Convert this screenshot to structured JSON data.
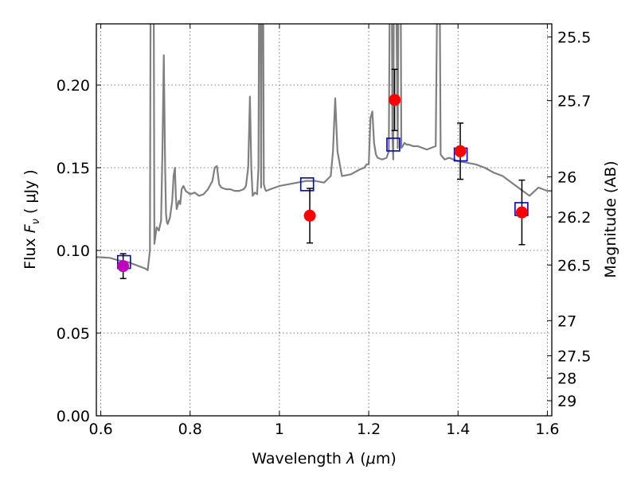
{
  "chart_data": {
    "type": "scatter",
    "xlabel_prefix": "Wavelength  ",
    "xlabel_symbol": "λ",
    "xlabel_units_open": " (",
    "xlabel_units_mu": "μ",
    "xlabel_units_close": "m)",
    "ylabel_prefix": "Flux  ",
    "ylabel_symbol": "F",
    "ylabel_sub": "ν",
    "ylabel_units": "  ( μJy )",
    "y2label": "Magnitude (AB)",
    "xlim": [
      0.59,
      1.61
    ],
    "ylim": [
      0.0,
      0.237
    ],
    "grid": true,
    "x_ticks": [
      {
        "value": 0.6,
        "label": "0.6"
      },
      {
        "value": 0.8,
        "label": "0.8"
      },
      {
        "value": 1.0,
        "label": "1"
      },
      {
        "value": 1.2,
        "label": "1.2"
      },
      {
        "value": 1.4,
        "label": "1.4"
      },
      {
        "value": 1.6,
        "label": "1.6"
      }
    ],
    "y_ticks": [
      {
        "value": 0.0,
        "label": "0.00"
      },
      {
        "value": 0.05,
        "label": "0.05"
      },
      {
        "value": 0.1,
        "label": "0.10"
      },
      {
        "value": 0.15,
        "label": "0.15"
      },
      {
        "value": 0.2,
        "label": "0.20"
      }
    ],
    "y2_ticks": [
      {
        "value": 25.5,
        "label": "25.5"
      },
      {
        "value": 25.7,
        "label": "25.7"
      },
      {
        "value": 26.0,
        "label": "26"
      },
      {
        "value": 26.2,
        "label": "26.2"
      },
      {
        "value": 26.5,
        "label": "26.5"
      },
      {
        "value": 27.0,
        "label": "27"
      },
      {
        "value": 27.5,
        "label": "27.5"
      },
      {
        "value": 28.0,
        "label": "28"
      },
      {
        "value": 29.0,
        "label": "29"
      }
    ],
    "colors": {
      "spectrum": "#808080",
      "observed": "#ff0000",
      "observed_first": "#bf00bf",
      "model": "#0000cc",
      "errorbar": "#000000",
      "grid": "#555555"
    },
    "spectrum": {
      "x": [
        0.59,
        0.62,
        0.64,
        0.66,
        0.68,
        0.7,
        0.705,
        0.71,
        0.712,
        0.715,
        0.718,
        0.72,
        0.725,
        0.73,
        0.735,
        0.738,
        0.741,
        0.744,
        0.746,
        0.748,
        0.75,
        0.755,
        0.76,
        0.763,
        0.766,
        0.768,
        0.77,
        0.775,
        0.778,
        0.781,
        0.785,
        0.79,
        0.8,
        0.81,
        0.82,
        0.83,
        0.84,
        0.85,
        0.855,
        0.86,
        0.865,
        0.87,
        0.88,
        0.89,
        0.9,
        0.91,
        0.92,
        0.925,
        0.93,
        0.934,
        0.937,
        0.94,
        0.945,
        0.95,
        0.953,
        0.955,
        0.957,
        0.959,
        0.961,
        0.963,
        0.965,
        0.968,
        0.97,
        0.98,
        1.0,
        1.02,
        1.04,
        1.06,
        1.08,
        1.1,
        1.115,
        1.12,
        1.125,
        1.13,
        1.14,
        1.16,
        1.18,
        1.19,
        1.195,
        1.2,
        1.204,
        1.208,
        1.212,
        1.216,
        1.22,
        1.23,
        1.24,
        1.245,
        1.248,
        1.251,
        1.253,
        1.255,
        1.257,
        1.26,
        1.265,
        1.267,
        1.269,
        1.271,
        1.273,
        1.276,
        1.28,
        1.285,
        1.29,
        1.3,
        1.31,
        1.32,
        1.33,
        1.34,
        1.35,
        1.355,
        1.358,
        1.361,
        1.364,
        1.367,
        1.37,
        1.38,
        1.4,
        1.42,
        1.44,
        1.46,
        1.48,
        1.5,
        1.52,
        1.54,
        1.56,
        1.58,
        1.59,
        1.6,
        1.61
      ],
      "y": [
        0.096,
        0.0955,
        0.094,
        0.093,
        0.091,
        0.089,
        0.088,
        0.1,
        0.3,
        0.3,
        0.3,
        0.104,
        0.114,
        0.112,
        0.118,
        0.16,
        0.218,
        0.15,
        0.122,
        0.117,
        0.116,
        0.12,
        0.13,
        0.145,
        0.15,
        0.133,
        0.125,
        0.13,
        0.128,
        0.137,
        0.139,
        0.136,
        0.134,
        0.135,
        0.133,
        0.134,
        0.137,
        0.142,
        0.15,
        0.151,
        0.14,
        0.138,
        0.137,
        0.137,
        0.136,
        0.136,
        0.137,
        0.139,
        0.15,
        0.193,
        0.15,
        0.133,
        0.135,
        0.134,
        0.15,
        0.3,
        0.3,
        0.138,
        0.3,
        0.3,
        0.14,
        0.137,
        0.136,
        0.137,
        0.139,
        0.14,
        0.141,
        0.142,
        0.142,
        0.141,
        0.145,
        0.16,
        0.192,
        0.16,
        0.145,
        0.146,
        0.149,
        0.15,
        0.152,
        0.152,
        0.18,
        0.184,
        0.165,
        0.158,
        0.156,
        0.155,
        0.156,
        0.16,
        0.3,
        0.3,
        0.17,
        0.155,
        0.3,
        0.3,
        0.162,
        0.3,
        0.3,
        0.3,
        0.162,
        0.163,
        0.165,
        0.164,
        0.164,
        0.163,
        0.163,
        0.162,
        0.161,
        0.162,
        0.163,
        0.3,
        0.3,
        0.158,
        0.157,
        0.156,
        0.155,
        0.156,
        0.154,
        0.153,
        0.152,
        0.15,
        0.147,
        0.145,
        0.141,
        0.137,
        0.133,
        0.138,
        0.137,
        0.136,
        0.136
      ]
    },
    "series": [
      {
        "marker": "circle",
        "points": [
          {
            "x": 0.65,
            "y": 0.0905,
            "err": 0.0075
          },
          {
            "x": 1.068,
            "y": 0.121,
            "err": 0.0165
          },
          {
            "x": 1.258,
            "y": 0.191,
            "err": 0.0185
          },
          {
            "x": 1.405,
            "y": 0.16,
            "err": 0.017
          },
          {
            "x": 1.543,
            "y": 0.123,
            "err": 0.0195
          }
        ]
      },
      {
        "marker": "open-square",
        "points": [
          {
            "x": 0.652,
            "y": 0.093
          },
          {
            "x": 1.062,
            "y": 0.14
          },
          {
            "x": 1.255,
            "y": 0.164
          },
          {
            "x": 1.406,
            "y": 0.158
          },
          {
            "x": 1.542,
            "y": 0.125
          }
        ]
      }
    ]
  }
}
